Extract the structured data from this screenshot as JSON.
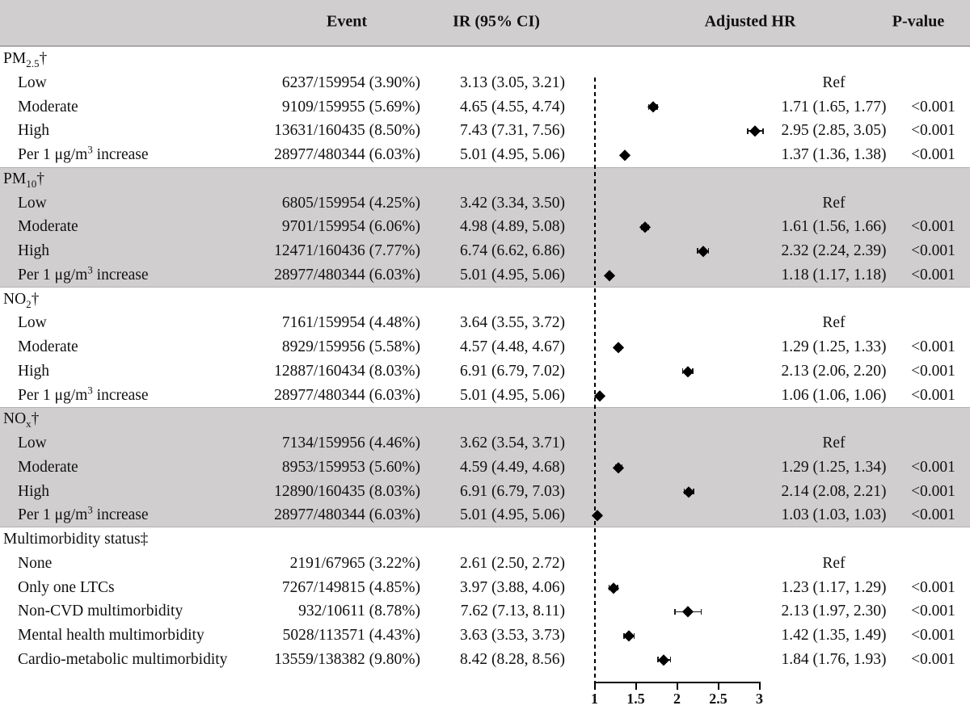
{
  "figure": {
    "columns": {
      "event": "Event",
      "ir": "IR (95% CI)",
      "hr": "Adjusted HR",
      "p": "P-value"
    }
  },
  "colors": {
    "band": "#d0cecf",
    "text": "#111111",
    "marker": "#000000"
  },
  "chart_data": {
    "type": "scatter",
    "variant": "forest-plot",
    "title": "",
    "xlabel": "Adjusted HR",
    "xlim": [
      1,
      3
    ],
    "x_axis": {
      "min": 1,
      "max": 3,
      "reference_value": 1,
      "ticks": [
        1,
        1.5,
        2,
        2.5,
        3
      ],
      "tick_labels": [
        "1",
        "1.5",
        "2",
        "2.5",
        "3"
      ]
    },
    "legend": null,
    "grid": false,
    "sections": [
      {
        "label": [
          [
            "t",
            "PM"
          ],
          [
            "sub",
            "2.5"
          ],
          [
            "t",
            "†"
          ]
        ],
        "shaded": false,
        "rows": [
          {
            "label": [
              [
                "t",
                "Low"
              ]
            ],
            "event": "6237/159954 (3.90%)",
            "ir": "3.13 (3.05, 3.21)",
            "hr_text": "Ref",
            "p": "",
            "hr": null,
            "lo": null,
            "hi": null
          },
          {
            "label": [
              [
                "t",
                "Moderate"
              ]
            ],
            "event": "9109/159955 (5.69%)",
            "ir": "4.65 (4.55, 4.74)",
            "hr_text": "1.71 (1.65, 1.77)",
            "p": "<0.001",
            "hr": 1.71,
            "lo": 1.65,
            "hi": 1.77
          },
          {
            "label": [
              [
                "t",
                "High"
              ]
            ],
            "event": "13631/160435 (8.50%)",
            "ir": "7.43 (7.31, 7.56)",
            "hr_text": "2.95 (2.85, 3.05)",
            "p": "<0.001",
            "hr": 2.95,
            "lo": 2.85,
            "hi": 3.05
          },
          {
            "label": [
              [
                "t",
                "Per 1 μg/m"
              ],
              [
                "sup",
                "3"
              ],
              [
                "t",
                " increase"
              ]
            ],
            "event": "28977/480344 (6.03%)",
            "ir": "5.01 (4.95, 5.06)",
            "hr_text": "1.37 (1.36, 1.38)",
            "p": "<0.001",
            "hr": 1.37,
            "lo": 1.36,
            "hi": 1.38
          }
        ]
      },
      {
        "label": [
          [
            "t",
            "PM"
          ],
          [
            "sub",
            "10"
          ],
          [
            "t",
            "†"
          ]
        ],
        "shaded": true,
        "rows": [
          {
            "label": [
              [
                "t",
                "Low"
              ]
            ],
            "event": "6805/159954 (4.25%)",
            "ir": "3.42 (3.34, 3.50)",
            "hr_text": "Ref",
            "p": "",
            "hr": null,
            "lo": null,
            "hi": null
          },
          {
            "label": [
              [
                "t",
                "Moderate"
              ]
            ],
            "event": "9701/159954 (6.06%)",
            "ir": "4.98 (4.89, 5.08)",
            "hr_text": "1.61 (1.56, 1.66)",
            "p": "<0.001",
            "hr": 1.61,
            "lo": 1.56,
            "hi": 1.66
          },
          {
            "label": [
              [
                "t",
                "High"
              ]
            ],
            "event": "12471/160436 (7.77%)",
            "ir": "6.74 (6.62, 6.86)",
            "hr_text": "2.32 (2.24, 2.39)",
            "p": "<0.001",
            "hr": 2.32,
            "lo": 2.24,
            "hi": 2.39
          },
          {
            "label": [
              [
                "t",
                "Per 1 μg/m"
              ],
              [
                "sup",
                "3"
              ],
              [
                "t",
                " increase"
              ]
            ],
            "event": "28977/480344 (6.03%)",
            "ir": "5.01 (4.95, 5.06)",
            "hr_text": "1.18 (1.17, 1.18)",
            "p": "<0.001",
            "hr": 1.18,
            "lo": 1.17,
            "hi": 1.18
          }
        ]
      },
      {
        "label": [
          [
            "t",
            "NO"
          ],
          [
            "sub",
            "2"
          ],
          [
            "t",
            "†"
          ]
        ],
        "shaded": false,
        "rows": [
          {
            "label": [
              [
                "t",
                "Low"
              ]
            ],
            "event": "7161/159954 (4.48%)",
            "ir": "3.64 (3.55, 3.72)",
            "hr_text": "Ref",
            "p": "",
            "hr": null,
            "lo": null,
            "hi": null
          },
          {
            "label": [
              [
                "t",
                "Moderate"
              ]
            ],
            "event": "8929/159956 (5.58%)",
            "ir": "4.57 (4.48, 4.67)",
            "hr_text": "1.29 (1.25, 1.33)",
            "p": "<0.001",
            "hr": 1.29,
            "lo": 1.25,
            "hi": 1.33
          },
          {
            "label": [
              [
                "t",
                "High"
              ]
            ],
            "event": "12887/160434 (8.03%)",
            "ir": "6.91 (6.79, 7.02)",
            "hr_text": "2.13 (2.06, 2.20)",
            "p": "<0.001",
            "hr": 2.13,
            "lo": 2.06,
            "hi": 2.2
          },
          {
            "label": [
              [
                "t",
                "Per 1 μg/m"
              ],
              [
                "sup",
                "3"
              ],
              [
                "t",
                " increase"
              ]
            ],
            "event": "28977/480344 (6.03%)",
            "ir": "5.01 (4.95, 5.06)",
            "hr_text": "1.06 (1.06, 1.06)",
            "p": "<0.001",
            "hr": 1.06,
            "lo": 1.06,
            "hi": 1.06
          }
        ]
      },
      {
        "label": [
          [
            "t",
            "NO"
          ],
          [
            "sub",
            "x"
          ],
          [
            "t",
            "†"
          ]
        ],
        "shaded": true,
        "rows": [
          {
            "label": [
              [
                "t",
                "Low"
              ]
            ],
            "event": "7134/159956 (4.46%)",
            "ir": "3.62 (3.54, 3.71)",
            "hr_text": "Ref",
            "p": "",
            "hr": null,
            "lo": null,
            "hi": null
          },
          {
            "label": [
              [
                "t",
                "Moderate"
              ]
            ],
            "event": "8953/159953 (5.60%)",
            "ir": "4.59 (4.49, 4.68)",
            "hr_text": "1.29 (1.25, 1.34)",
            "p": "<0.001",
            "hr": 1.29,
            "lo": 1.25,
            "hi": 1.34
          },
          {
            "label": [
              [
                "t",
                "High"
              ]
            ],
            "event": "12890/160435 (8.03%)",
            "ir": "6.91 (6.79, 7.03)",
            "hr_text": "2.14 (2.08, 2.21)",
            "p": "<0.001",
            "hr": 2.14,
            "lo": 2.08,
            "hi": 2.21
          },
          {
            "label": [
              [
                "t",
                "Per 1 μg/m"
              ],
              [
                "sup",
                "3"
              ],
              [
                "t",
                " increase"
              ]
            ],
            "event": "28977/480344 (6.03%)",
            "ir": "5.01 (4.95, 5.06)",
            "hr_text": "1.03 (1.03, 1.03)",
            "p": "<0.001",
            "hr": 1.03,
            "lo": 1.03,
            "hi": 1.03
          }
        ]
      },
      {
        "label": [
          [
            "t",
            "Multimorbidity status‡"
          ]
        ],
        "shaded": false,
        "rows": [
          {
            "label": [
              [
                "t",
                "None"
              ]
            ],
            "event": "2191/67965 (3.22%)",
            "ir": "2.61 (2.50, 2.72)",
            "hr_text": "Ref",
            "p": "",
            "hr": null,
            "lo": null,
            "hi": null
          },
          {
            "label": [
              [
                "t",
                "Only one LTCs"
              ]
            ],
            "event": "7267/149815 (4.85%)",
            "ir": "3.97 (3.88, 4.06)",
            "hr_text": "1.23 (1.17, 1.29)",
            "p": "<0.001",
            "hr": 1.23,
            "lo": 1.17,
            "hi": 1.29
          },
          {
            "label": [
              [
                "t",
                "Non-CVD multimorbidity"
              ]
            ],
            "event": "932/10611 (8.78%)",
            "ir": "7.62 (7.13, 8.11)",
            "hr_text": "2.13 (1.97, 2.30)",
            "p": "<0.001",
            "hr": 2.13,
            "lo": 1.97,
            "hi": 2.3
          },
          {
            "label": [
              [
                "t",
                "Mental health multimorbidity"
              ]
            ],
            "event": "5028/113571 (4.43%)",
            "ir": "3.63 (3.53, 3.73)",
            "hr_text": "1.42 (1.35, 1.49)",
            "p": "<0.001",
            "hr": 1.42,
            "lo": 1.35,
            "hi": 1.49
          },
          {
            "label": [
              [
                "t",
                "Cardio-metabolic multimorbidity"
              ]
            ],
            "event": "13559/138382 (9.80%)",
            "ir": "8.42 (8.28, 8.56)",
            "hr_text": "1.84 (1.76, 1.93)",
            "p": "<0.001",
            "hr": 1.84,
            "lo": 1.76,
            "hi": 1.93
          }
        ]
      }
    ]
  }
}
